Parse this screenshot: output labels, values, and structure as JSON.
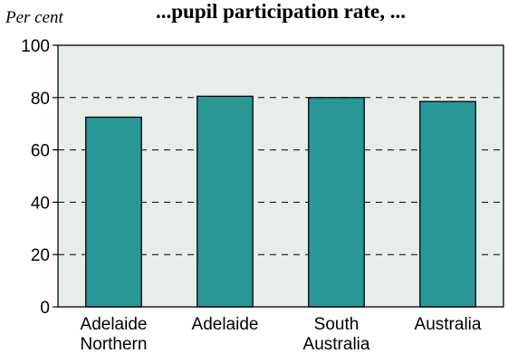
{
  "chart_data": {
    "type": "bar",
    "title": "...pupil participation rate, ...",
    "ylabel": "Per cent",
    "xlabel": "",
    "categories": [
      [
        "Adelaide",
        "Northern"
      ],
      [
        "Adelaide"
      ],
      [
        "South",
        "Australia"
      ],
      [
        "Australia"
      ]
    ],
    "values": [
      72.5,
      80.5,
      80,
      78.5
    ],
    "ylim": [
      0,
      100
    ],
    "yticks": [
      0,
      20,
      40,
      60,
      80,
      100
    ],
    "grid": "horizontal-dashed",
    "legend": "none",
    "colors": {
      "bar": "#2a9797",
      "plot_background": "#e7eee9"
    }
  }
}
